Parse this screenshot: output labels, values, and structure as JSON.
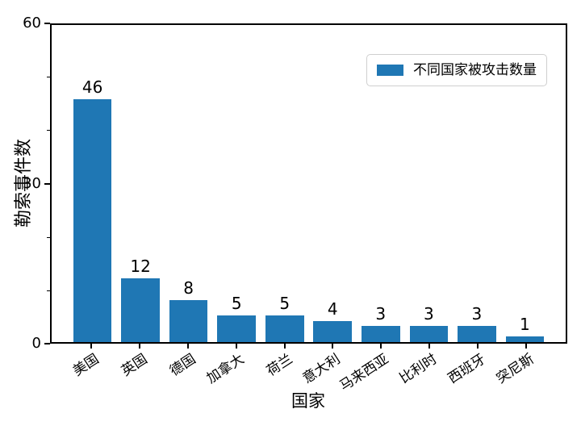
{
  "chart_data": {
    "type": "bar",
    "title": "",
    "xlabel": "国家",
    "ylabel": "勒索事件数",
    "categories": [
      "美国",
      "英国",
      "德国",
      "加拿大",
      "荷兰",
      "意大利",
      "马来西亚",
      "比利时",
      "西班牙",
      "突尼斯"
    ],
    "values": [
      46,
      12,
      8,
      5,
      5,
      4,
      3,
      3,
      3,
      1
    ],
    "value_labels": [
      "46",
      "12",
      "8",
      "5",
      "5",
      "4",
      "3",
      "3",
      "3",
      "1"
    ],
    "ylim": [
      0,
      60
    ],
    "yticks": [
      {
        "value": 0,
        "label": "0"
      },
      {
        "value": 30,
        "label": "30"
      },
      {
        "value": 60,
        "label": "60"
      }
    ],
    "minor_ytick_values": [
      10,
      20,
      40,
      50
    ],
    "grid": false,
    "bar_color": "#1f77b4",
    "axis_color": "#000000",
    "legend": {
      "position": "upper-right",
      "label": "不同国家被攻击数量",
      "swatch_color": "#1f77b4"
    }
  }
}
